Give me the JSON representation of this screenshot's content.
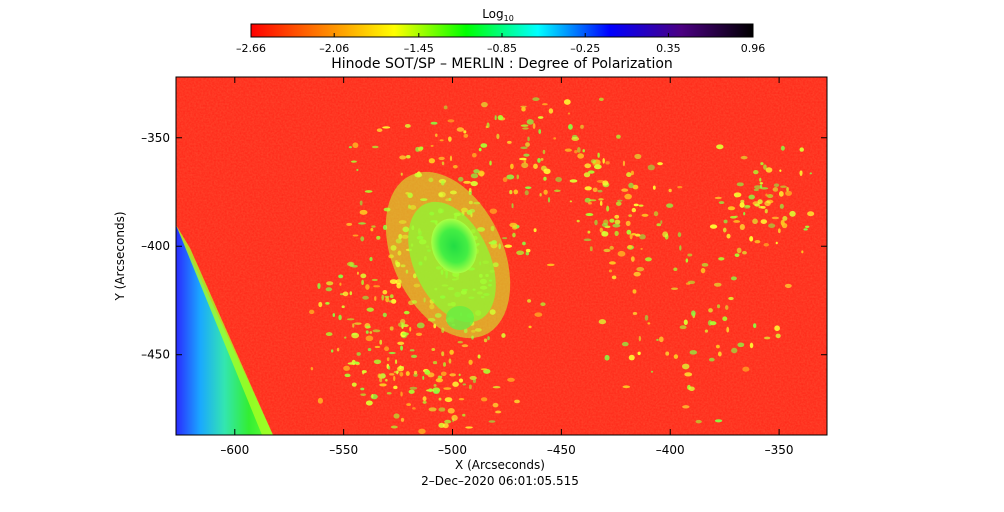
{
  "chart_data": {
    "type": "heatmap",
    "title": "Hinode SOT/SP – MERLIN : Degree of Polarization",
    "xlabel": "X (Arcseconds)",
    "ylabel": "Y (Arcseconds)",
    "timestamp": "2–Dec–2020 06:01:05.515",
    "xlim": [
      -627,
      -328
    ],
    "ylim": [
      -487,
      -322
    ],
    "x_ticks": [
      -600,
      -550,
      -500,
      -450,
      -400,
      -350
    ],
    "x_tick_labels": [
      "–600",
      "–550",
      "–500",
      "–450",
      "–400",
      "–350"
    ],
    "y_ticks": [
      -350,
      -400,
      -450
    ],
    "y_tick_labels": [
      "–350",
      "–400",
      "–450"
    ],
    "colorbar": {
      "label": "Log",
      "label_subscript": "10",
      "ticks": [
        -2.66,
        -2.06,
        -1.45,
        -0.85,
        -0.25,
        0.35,
        0.96
      ],
      "tick_labels": [
        "–2.66",
        "–2.06",
        "–1.45",
        "–0.85",
        "–0.25",
        "0.35",
        "0.96"
      ],
      "range": [
        -2.66,
        0.96
      ],
      "colors": [
        "#ff0000",
        "#ff8000",
        "#ffff00",
        "#00ff00",
        "#00ffff",
        "#0000ff",
        "#4b0082",
        "#000000"
      ]
    },
    "background_color": "#ff2a1a",
    "features": {
      "sunspot_center": [
        -502,
        -402
      ],
      "off_limb_region": "lower-left"
    }
  }
}
